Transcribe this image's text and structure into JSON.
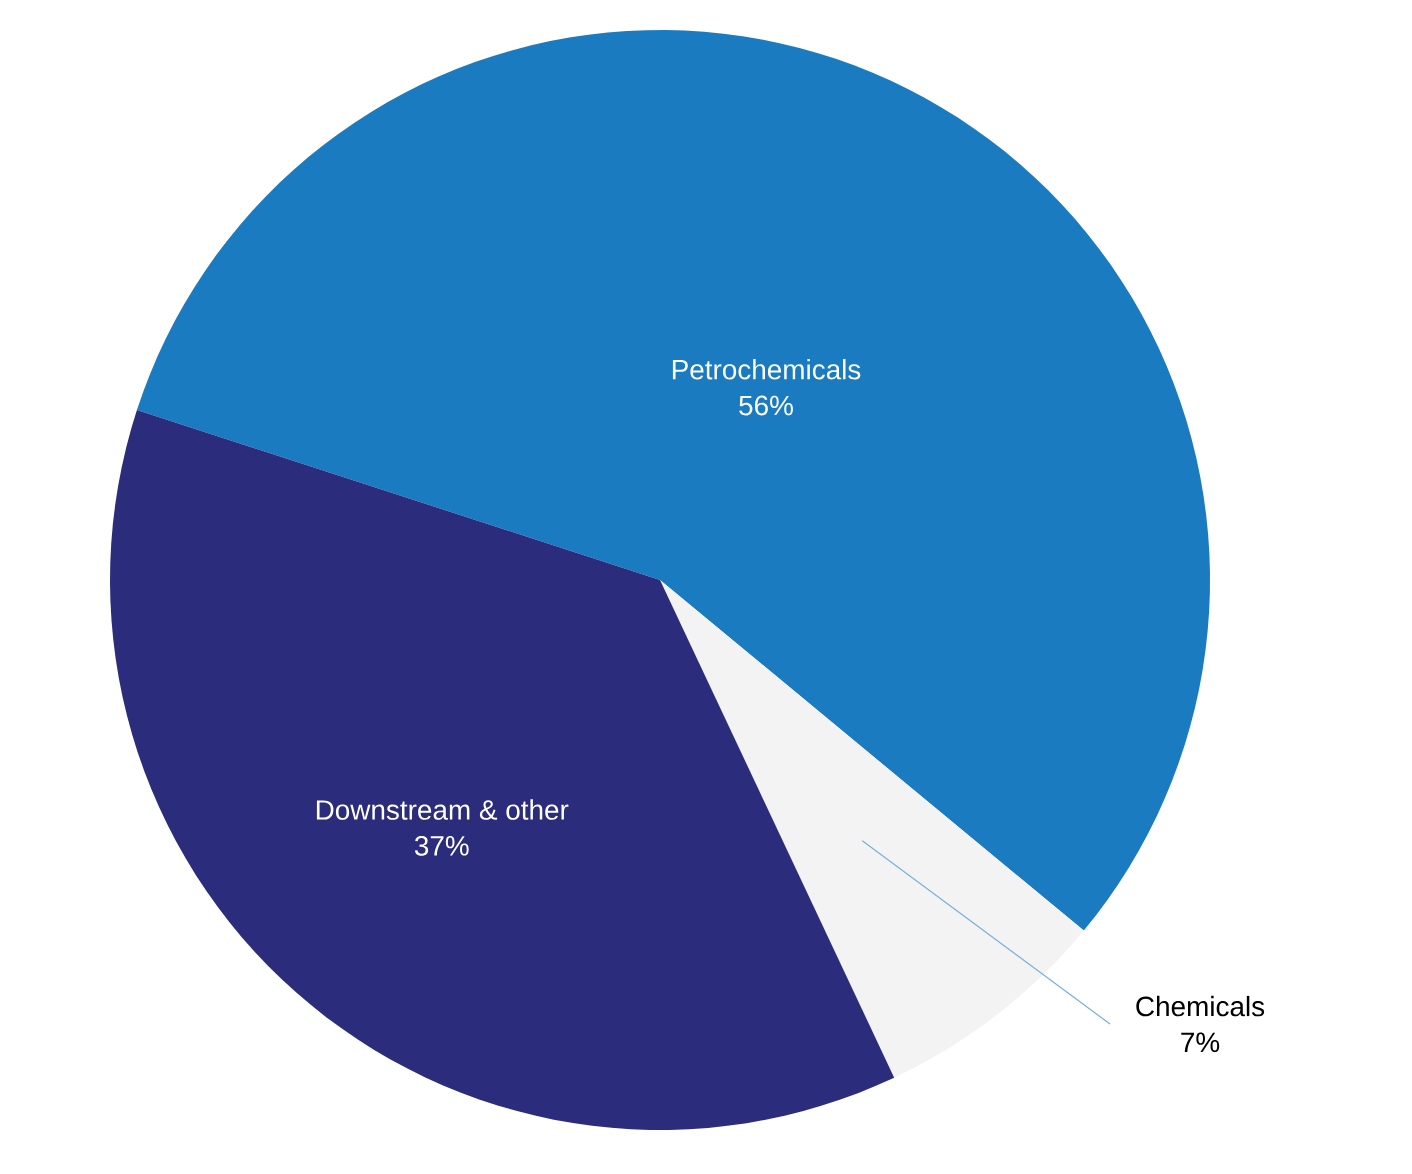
{
  "chart_data": {
    "type": "pie",
    "categories": [
      "Petrochemicals",
      "Chemicals",
      "Downstream & other"
    ],
    "values": [
      56,
      7,
      37
    ],
    "colors": [
      "#1a7bc0",
      "#f3f3f3",
      "#2b2c7c"
    ],
    "value_labels": [
      "56%",
      "7%",
      "37%"
    ]
  }
}
